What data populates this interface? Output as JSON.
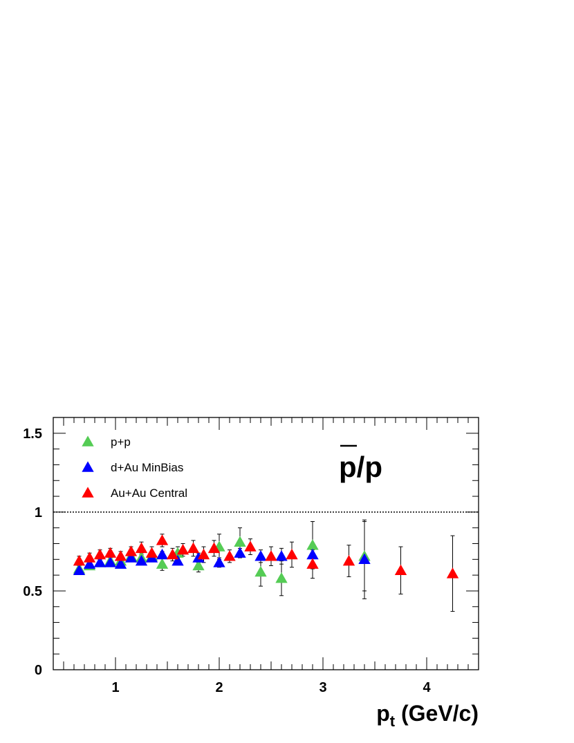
{
  "chart_data": {
    "type": "scatter",
    "title": "",
    "annotation": {
      "numerator": "p",
      "rest": "/p"
    },
    "xlabel": {
      "main": "p",
      "sub": "t",
      "rest": " (GeV/c)"
    },
    "ylabel": "",
    "xlim": [
      0.4,
      4.5
    ],
    "ylim": [
      0,
      1.6
    ],
    "x_major_ticks": [
      1,
      2,
      3,
      4
    ],
    "x_tick_labels": [
      "1",
      "2",
      "3",
      "4"
    ],
    "y_major_ticks": [
      0,
      0.5,
      1,
      1.5
    ],
    "y_tick_labels": [
      "0",
      "0.5",
      "1",
      "1.5"
    ],
    "reference_line": {
      "y": 1,
      "style": "dotted"
    },
    "grid": false,
    "legend_position": "top-left",
    "marker": "triangle-up",
    "series": [
      {
        "name": "p+p",
        "color": "#55cc55",
        "points": [
          {
            "x": 0.65,
            "y": 0.64,
            "err": 0.02
          },
          {
            "x": 0.75,
            "y": 0.66,
            "err": 0.02
          },
          {
            "x": 0.85,
            "y": 0.68,
            "err": 0.02
          },
          {
            "x": 0.95,
            "y": 0.69,
            "err": 0.02
          },
          {
            "x": 1.05,
            "y": 0.69,
            "err": 0.02
          },
          {
            "x": 1.15,
            "y": 0.72,
            "err": 0.03
          },
          {
            "x": 1.25,
            "y": 0.71,
            "err": 0.03
          },
          {
            "x": 1.35,
            "y": 0.72,
            "err": 0.03
          },
          {
            "x": 1.45,
            "y": 0.67,
            "err": 0.04
          },
          {
            "x": 1.6,
            "y": 0.74,
            "err": 0.04
          },
          {
            "x": 1.8,
            "y": 0.66,
            "err": 0.04
          },
          {
            "x": 2.0,
            "y": 0.78,
            "err": 0.08
          },
          {
            "x": 2.2,
            "y": 0.81,
            "err": 0.09
          },
          {
            "x": 2.4,
            "y": 0.62,
            "err": 0.09
          },
          {
            "x": 2.6,
            "y": 0.58,
            "err": 0.11
          },
          {
            "x": 2.9,
            "y": 0.79,
            "err": 0.15
          },
          {
            "x": 3.4,
            "y": 0.72,
            "err": 0.22
          }
        ]
      },
      {
        "name": "d+Au  MinBias",
        "color": "#0000ff",
        "points": [
          {
            "x": 0.65,
            "y": 0.63,
            "err": 0.01
          },
          {
            "x": 0.75,
            "y": 0.67,
            "err": 0.01
          },
          {
            "x": 0.85,
            "y": 0.68,
            "err": 0.01
          },
          {
            "x": 0.95,
            "y": 0.68,
            "err": 0.01
          },
          {
            "x": 1.05,
            "y": 0.67,
            "err": 0.01
          },
          {
            "x": 1.15,
            "y": 0.71,
            "err": 0.02
          },
          {
            "x": 1.25,
            "y": 0.69,
            "err": 0.02
          },
          {
            "x": 1.35,
            "y": 0.71,
            "err": 0.02
          },
          {
            "x": 1.45,
            "y": 0.73,
            "err": 0.02
          },
          {
            "x": 1.6,
            "y": 0.69,
            "err": 0.02
          },
          {
            "x": 1.8,
            "y": 0.71,
            "err": 0.03
          },
          {
            "x": 2.0,
            "y": 0.68,
            "err": 0.03
          },
          {
            "x": 2.2,
            "y": 0.74,
            "err": 0.03
          },
          {
            "x": 2.4,
            "y": 0.72,
            "err": 0.04
          },
          {
            "x": 2.6,
            "y": 0.72,
            "err": 0.05
          },
          {
            "x": 2.9,
            "y": 0.73,
            "err": 0.06
          },
          {
            "x": 3.4,
            "y": 0.7,
            "err": 0.25
          }
        ]
      },
      {
        "name": "Au+Au Central",
        "color": "#ff0000",
        "points": [
          {
            "x": 0.65,
            "y": 0.69,
            "err": 0.03
          },
          {
            "x": 0.75,
            "y": 0.71,
            "err": 0.03
          },
          {
            "x": 0.85,
            "y": 0.73,
            "err": 0.03
          },
          {
            "x": 0.95,
            "y": 0.74,
            "err": 0.03
          },
          {
            "x": 1.05,
            "y": 0.72,
            "err": 0.03
          },
          {
            "x": 1.15,
            "y": 0.75,
            "err": 0.03
          },
          {
            "x": 1.25,
            "y": 0.77,
            "err": 0.04
          },
          {
            "x": 1.35,
            "y": 0.74,
            "err": 0.04
          },
          {
            "x": 1.45,
            "y": 0.82,
            "err": 0.04
          },
          {
            "x": 1.55,
            "y": 0.73,
            "err": 0.04
          },
          {
            "x": 1.65,
            "y": 0.76,
            "err": 0.04
          },
          {
            "x": 1.75,
            "y": 0.77,
            "err": 0.05
          },
          {
            "x": 1.85,
            "y": 0.73,
            "err": 0.05
          },
          {
            "x": 1.95,
            "y": 0.77,
            "err": 0.05
          },
          {
            "x": 2.1,
            "y": 0.72,
            "err": 0.04
          },
          {
            "x": 2.3,
            "y": 0.78,
            "err": 0.05
          },
          {
            "x": 2.5,
            "y": 0.72,
            "err": 0.06
          },
          {
            "x": 2.7,
            "y": 0.73,
            "err": 0.08
          },
          {
            "x": 2.9,
            "y": 0.67,
            "err": 0.09
          },
          {
            "x": 3.25,
            "y": 0.69,
            "err": 0.1
          },
          {
            "x": 3.75,
            "y": 0.63,
            "err": 0.15
          },
          {
            "x": 4.25,
            "y": 0.61,
            "err": 0.24
          }
        ]
      }
    ]
  }
}
